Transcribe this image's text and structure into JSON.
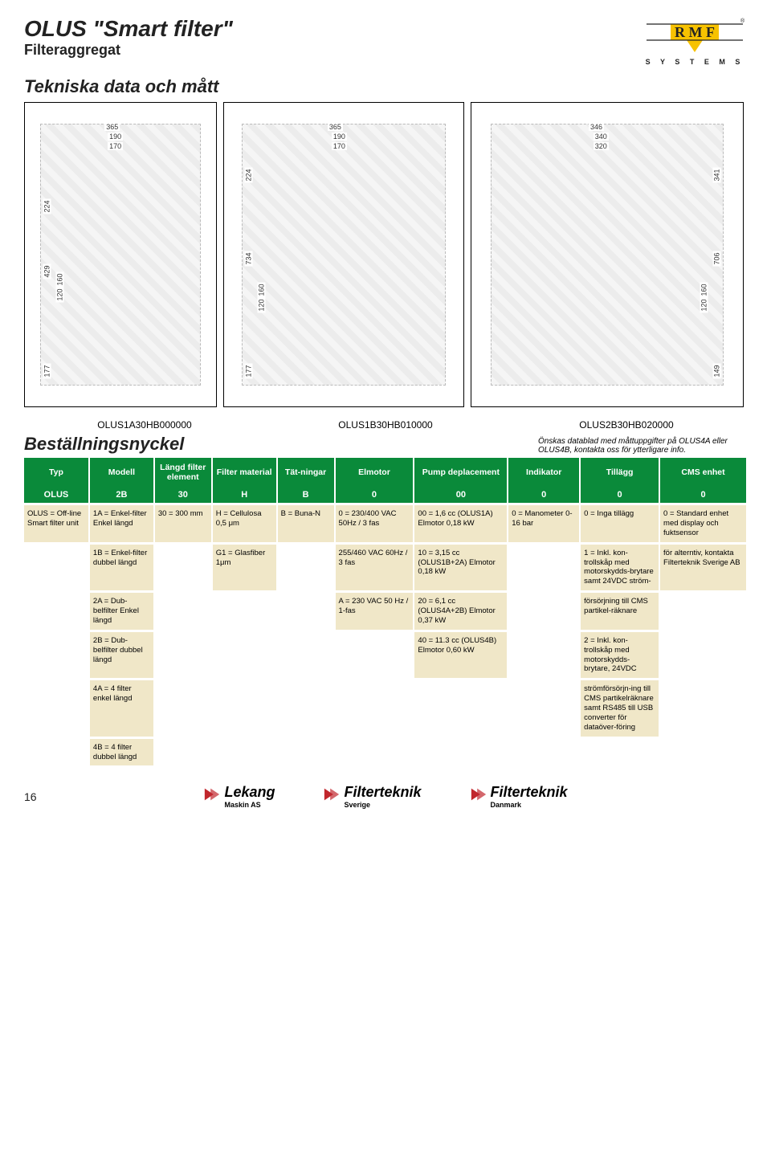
{
  "title": "OLUS \"Smart filter\"",
  "subtitle": "Filteraggregat",
  "section_title": "Tekniska data och mått",
  "logo": {
    "brand": "RMF",
    "subtitle": "S Y S T E M S",
    "bar_color": "#f7c200",
    "text_color": "#222"
  },
  "drawings": {
    "d1_dims": {
      "w1": "365",
      "w2": "190",
      "w3": "170",
      "h_side": "224",
      "h_total": "429",
      "h_mid1": "160",
      "h_mid2": "120",
      "h_bottom": "177"
    },
    "d2_dims": {
      "w1": "365",
      "w2": "190",
      "w3": "170",
      "h_side": "224",
      "h_total": "734",
      "h_mid1": "160",
      "h_mid2": "120",
      "h_bottom": "177"
    },
    "d3_dims": {
      "w1": "346",
      "w2": "340",
      "w3": "320",
      "h_side": "341",
      "h_total": "706",
      "h_mid1": "160",
      "h_mid2": "120",
      "h_bottom": "149"
    }
  },
  "model_labels": [
    "OLUS1A30HB000000",
    "OLUS1B30HB010000",
    "OLUS2B30HB020000"
  ],
  "nyckel_title": "Beställningsnyckel",
  "info_note": "Önskas datablad med måttuppgifter på OLUS4A eller OLUS4B, kontakta oss för ytterligare info.",
  "table": {
    "header_bg": "#0a8a3a",
    "desc_bg": "#f0e7c8",
    "widths_pct": [
      9,
      9,
      8,
      9,
      8,
      11,
      13,
      10,
      11,
      12
    ],
    "headers": [
      "Typ",
      "Modell",
      "Längd filter element",
      "Filter material",
      "Tät-ningar",
      "Elmotor",
      "Pump deplacement",
      "Indikator",
      "Tillägg",
      "CMS enhet"
    ],
    "codes": [
      "OLUS",
      "2B",
      "30",
      "H",
      "B",
      "0",
      "00",
      "0",
      "0",
      "0"
    ],
    "rows": [
      [
        "OLUS = Off-line Smart filter unit",
        "1A = Enkel-filter Enkel längd",
        "30 = 300 mm",
        "H = Cellulosa 0,5 μm",
        "B = Buna-N",
        "0 = 230/400 VAC 50Hz / 3 fas",
        "00 = 1,6 cc (OLUS1A) Elmotor 0,18 kW",
        "0 = Manometer 0-16 bar",
        "0 = Inga tillägg",
        "0 = Standard enhet med display och fuktsensor"
      ],
      [
        "",
        "1B = Enkel-filter dubbel längd",
        "",
        "G1 = Glasfiber 1μm",
        "",
        "255/460 VAC 60Hz / 3 fas",
        "10 = 3,15 cc (OLUS1B+2A) Elmotor 0,18 kW",
        "",
        "1 = Inkl. kon-trollskåp med motorskydds-brytare samt 24VDC ström-",
        "för alterntiv, kontakta Filterteknik Sverige AB"
      ],
      [
        "",
        "2A = Dub-belfilter Enkel längd",
        "",
        "",
        "",
        "A = 230 VAC 50 Hz / 1-fas",
        "20 = 6,1 cc (OLUS4A+2B) Elmotor 0,37 kW",
        "",
        "försörjning till CMS partikel-räknare",
        ""
      ],
      [
        "",
        "2B = Dub-belfilter dubbel längd",
        "",
        "",
        "",
        "",
        "40 = 11.3 cc (OLUS4B) Elmotor 0,60 kW",
        "",
        "2 = Inkl. kon-trollskåp med motorskydds-brytare, 24VDC",
        ""
      ],
      [
        "",
        "4A = 4 filter enkel längd",
        "",
        "",
        "",
        "",
        "",
        "",
        "strömförsörjn-ing till CMS partikelräknare samt RS485 till USB converter för dataöver-föring",
        ""
      ],
      [
        "",
        "4B = 4 filter dubbel längd",
        "",
        "",
        "",
        "",
        "",
        "",
        "",
        ""
      ]
    ]
  },
  "footer": {
    "page_num": "16",
    "logos": [
      {
        "name": "Lekang",
        "sub": "Maskin AS",
        "accent": "#c1272d"
      },
      {
        "name": "Filterteknik",
        "sub": "Sverige",
        "accent": "#c1272d"
      },
      {
        "name": "Filterteknik",
        "sub": "Danmark",
        "accent": "#c1272d"
      }
    ]
  }
}
